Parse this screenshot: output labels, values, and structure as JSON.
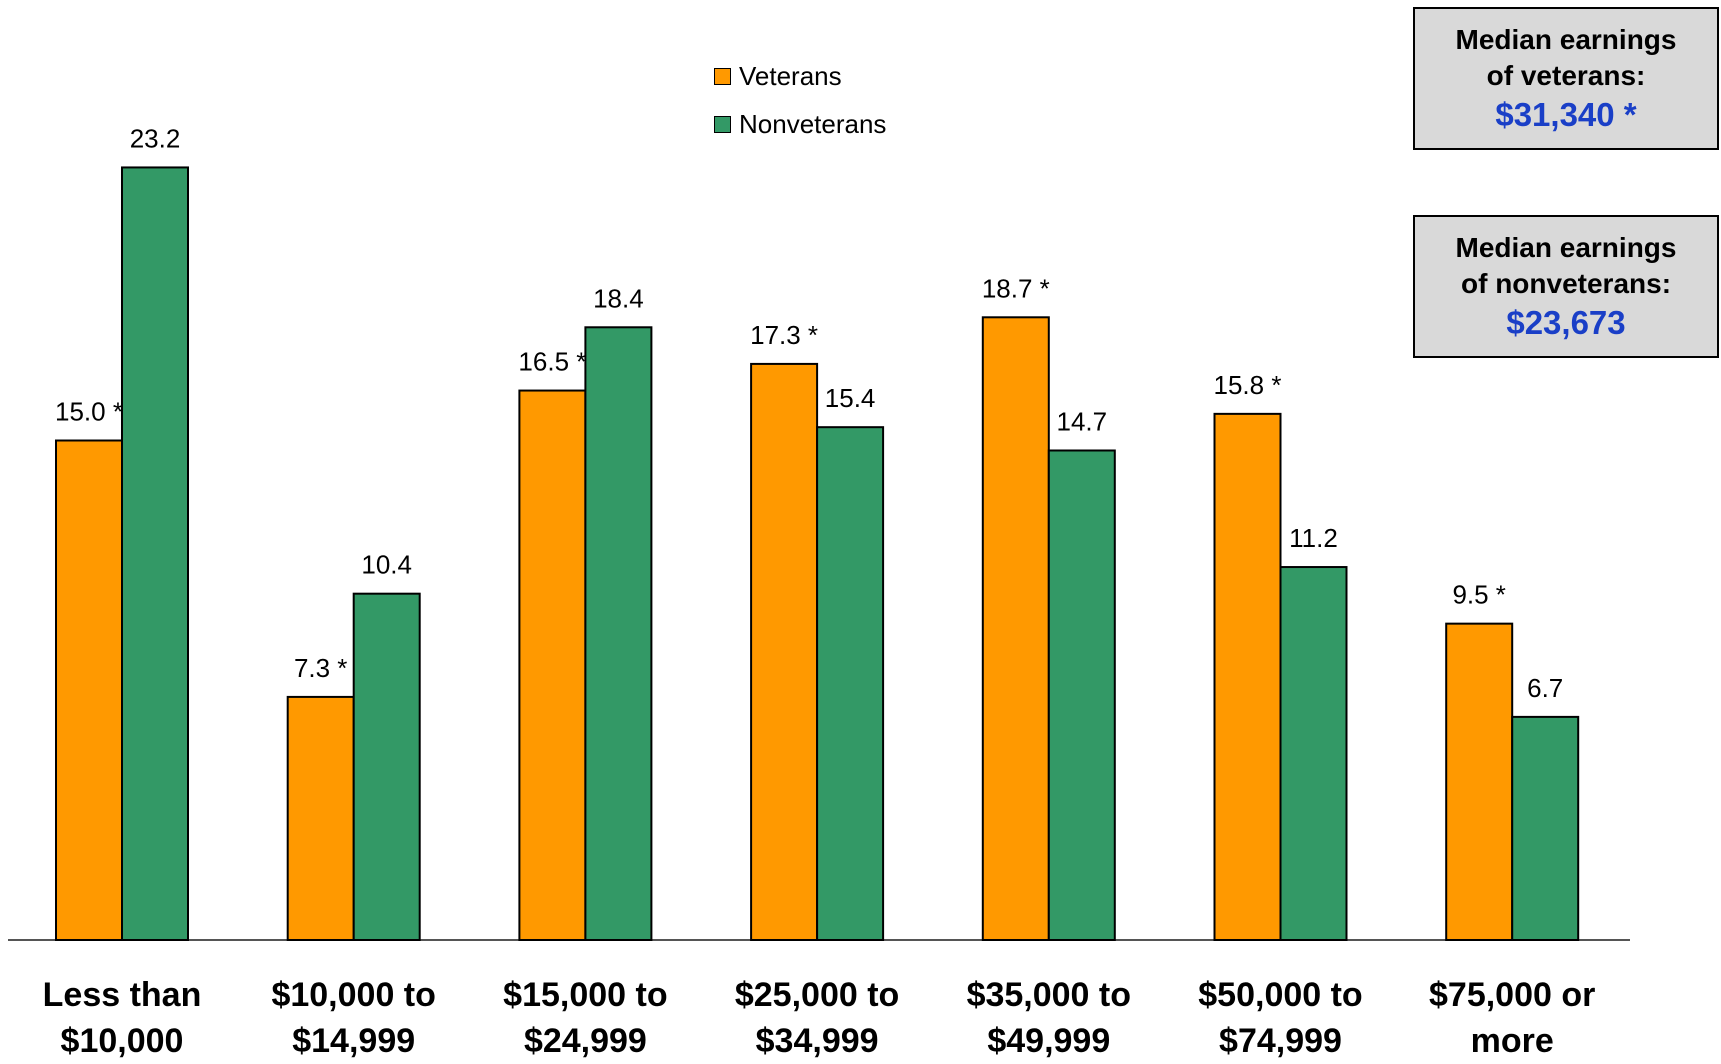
{
  "chart_data": {
    "type": "bar",
    "categories": [
      [
        "Less than",
        "$10,000"
      ],
      [
        "$10,000 to",
        "$14,999"
      ],
      [
        "$15,000 to",
        "$24,999"
      ],
      [
        "$25,000 to",
        "$34,999"
      ],
      [
        "$35,000 to",
        "$49,999"
      ],
      [
        "$50,000 to",
        "$74,999"
      ],
      [
        "$75,000 or",
        "more"
      ]
    ],
    "series": [
      {
        "name": "Veterans",
        "color": "#ff9900",
        "values": [
          15.0,
          7.3,
          16.5,
          17.3,
          18.7,
          15.8,
          9.5
        ],
        "labels": [
          "15.0 *",
          "7.3 *",
          "16.5 *",
          "17.3 *",
          "18.7 *",
          "15.8 *",
          "9.5 *"
        ]
      },
      {
        "name": "Nonveterans",
        "color": "#339966",
        "values": [
          23.2,
          10.4,
          18.4,
          15.4,
          14.7,
          11.2,
          6.7
        ],
        "labels": [
          "23.2",
          "10.4",
          "18.4",
          "15.4",
          "14.7",
          "11.2",
          "6.7"
        ]
      }
    ],
    "ylim": [
      0,
      25.5
    ],
    "grid": false,
    "legend_position": "top-center"
  },
  "legend": {
    "veterans": "Veterans",
    "nonveterans": "Nonveterans"
  },
  "box_veterans": {
    "line1": "Median earnings",
    "line2": "of veterans:",
    "value": "$31,340 *"
  },
  "box_nonveterans": {
    "line1": "Median earnings",
    "line2": "of nonveterans:",
    "value": "$23,673"
  }
}
